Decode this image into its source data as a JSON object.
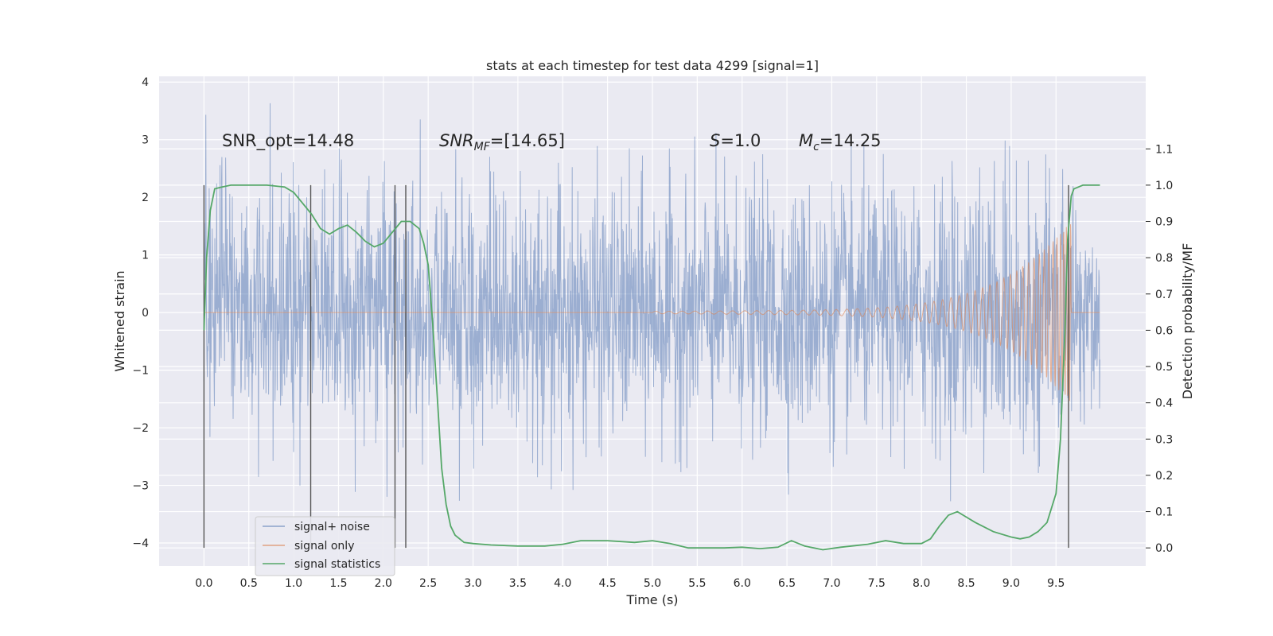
{
  "chart_data": {
    "type": "line",
    "title": "stats at each timestep for test data 4299 [signal=1]",
    "xlabel": "Time (s)",
    "ylabel": "Whitened strain",
    "ylabel_right": "Detection probability/MF",
    "xlim": [
      -0.5,
      10.5
    ],
    "ylim": [
      -4.4,
      4.1
    ],
    "ylim_right": [
      -0.05,
      1.3
    ],
    "x_ticks": [
      "0.0",
      "0.5",
      "1.0",
      "1.5",
      "2.0",
      "2.5",
      "3.0",
      "3.5",
      "4.0",
      "4.5",
      "5.0",
      "5.5",
      "6.0",
      "6.5",
      "7.0",
      "7.5",
      "8.0",
      "8.5",
      "9.0",
      "9.5"
    ],
    "y_ticks": [
      "−4",
      "−3",
      "−2",
      "−1",
      "0",
      "1",
      "2",
      "3",
      "4"
    ],
    "y_ticks_right": [
      "0.0",
      "0.1",
      "0.2",
      "0.3",
      "0.4",
      "0.5",
      "0.6",
      "0.7",
      "0.8",
      "0.9",
      "1.0",
      "1.1"
    ],
    "grid": true,
    "legend_position": "lower-left",
    "background": "#eaeaf2",
    "annotations": {
      "snr_opt": "SNR_opt=14.48",
      "snr_mf": "SNR",
      "snr_mf_sub": "MF",
      "snr_mf_value": "=[14.65]",
      "s_var": "S",
      "s_value": "=1.0",
      "mc_var": "M",
      "mc_sub": "c",
      "mc_value": "=14.25"
    },
    "vertical_lines_x": [
      0.0,
      1.19,
      2.13,
      2.25,
      9.64
    ],
    "series": [
      {
        "name": "signal+ noise",
        "color": "#4c72b0",
        "description_range": [
          -3.3,
          3.7
        ],
        "x_range": [
          0.0,
          9.99
        ]
      },
      {
        "name": "signal only",
        "color": "#dd8452",
        "chirp": {
          "flat_until": 5.0,
          "amp_at_5": 0.02,
          "amp_at_8": 0.12,
          "amp_at_9": 0.35,
          "amp_at_peak": 1.5,
          "peak_time": 9.64,
          "zero_after": 9.67
        }
      },
      {
        "name": "signal statistics",
        "color": "#55a868",
        "axis": "right",
        "x": [
          0.0,
          0.03,
          0.07,
          0.12,
          0.2,
          0.3,
          0.5,
          0.7,
          0.9,
          1.0,
          1.1,
          1.2,
          1.3,
          1.4,
          1.5,
          1.6,
          1.7,
          1.8,
          1.9,
          2.0,
          2.1,
          2.2,
          2.3,
          2.4,
          2.45,
          2.5,
          2.55,
          2.6,
          2.65,
          2.7,
          2.75,
          2.8,
          2.9,
          3.0,
          3.2,
          3.5,
          3.8,
          4.0,
          4.2,
          4.5,
          4.8,
          5.0,
          5.2,
          5.4,
          5.6,
          5.8,
          6.0,
          6.2,
          6.4,
          6.55,
          6.7,
          6.9,
          7.1,
          7.4,
          7.6,
          7.8,
          8.0,
          8.1,
          8.2,
          8.3,
          8.4,
          8.5,
          8.6,
          8.8,
          9.0,
          9.1,
          9.2,
          9.3,
          9.4,
          9.5,
          9.55,
          9.6,
          9.63,
          9.67,
          9.7,
          9.75,
          9.8,
          9.9,
          9.99
        ],
        "y": [
          0.6,
          0.8,
          0.93,
          0.99,
          0.995,
          1.0,
          1.0,
          1.0,
          0.995,
          0.98,
          0.95,
          0.92,
          0.88,
          0.865,
          0.88,
          0.89,
          0.87,
          0.845,
          0.83,
          0.84,
          0.87,
          0.9,
          0.9,
          0.88,
          0.84,
          0.78,
          0.62,
          0.42,
          0.22,
          0.12,
          0.06,
          0.035,
          0.015,
          0.012,
          0.008,
          0.005,
          0.005,
          0.01,
          0.02,
          0.02,
          0.015,
          0.02,
          0.012,
          0.0,
          0.0,
          0.0,
          0.002,
          -0.002,
          0.002,
          0.02,
          0.005,
          -0.005,
          0.002,
          0.01,
          0.02,
          0.012,
          0.012,
          0.025,
          0.06,
          0.09,
          0.1,
          0.085,
          0.07,
          0.045,
          0.03,
          0.025,
          0.03,
          0.045,
          0.07,
          0.15,
          0.3,
          0.6,
          0.85,
          0.97,
          0.99,
          0.995,
          1.0,
          1.0,
          1.0
        ]
      }
    ]
  }
}
